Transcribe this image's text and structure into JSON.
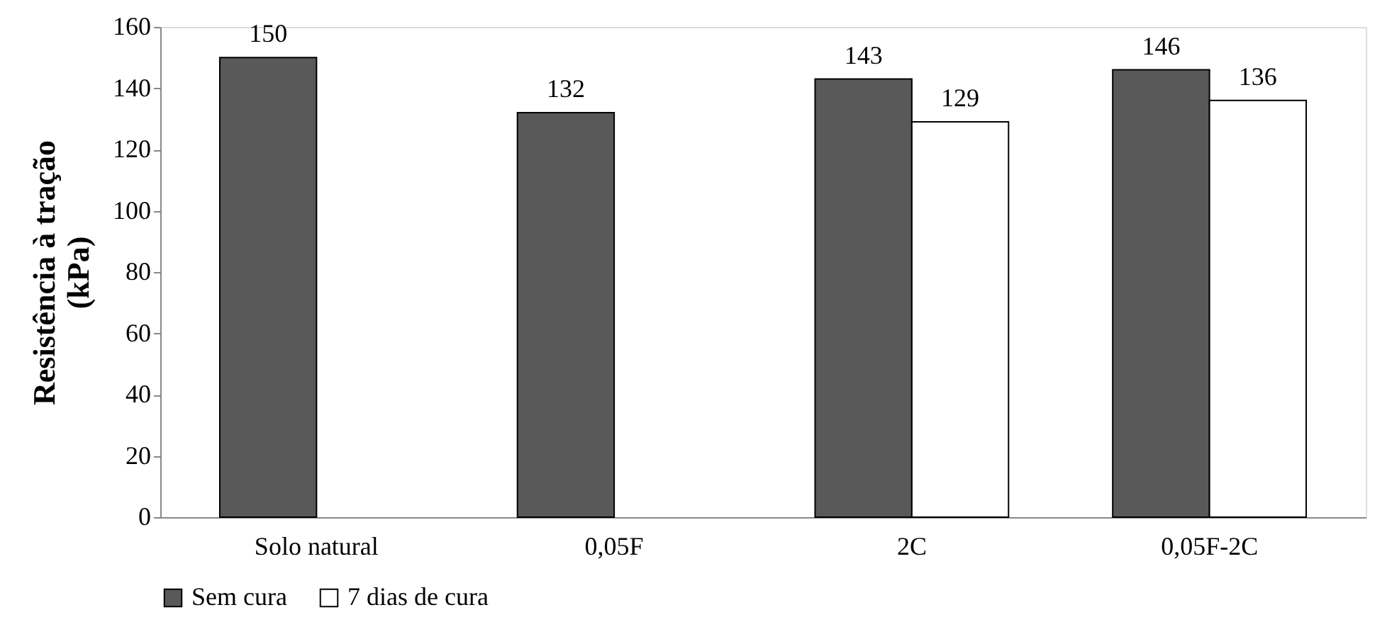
{
  "chart_data": {
    "type": "bar",
    "ylabel": "Resistência à tração (kPa)",
    "categories": [
      "Solo natural",
      "0,05F",
      "2C",
      "0,05F-2C"
    ],
    "series": [
      {
        "name": "Sem cura",
        "color": "#595959",
        "values": [
          150,
          132,
          143,
          146
        ]
      },
      {
        "name": "7 dias de cura",
        "color": "#ffffff",
        "values": [
          null,
          null,
          129,
          136
        ]
      }
    ],
    "ylim": [
      0,
      160
    ],
    "yticks": [
      0,
      20,
      40,
      60,
      80,
      100,
      120,
      140,
      160
    ],
    "grid": false,
    "legend": "bottom",
    "data_labels": true
  }
}
